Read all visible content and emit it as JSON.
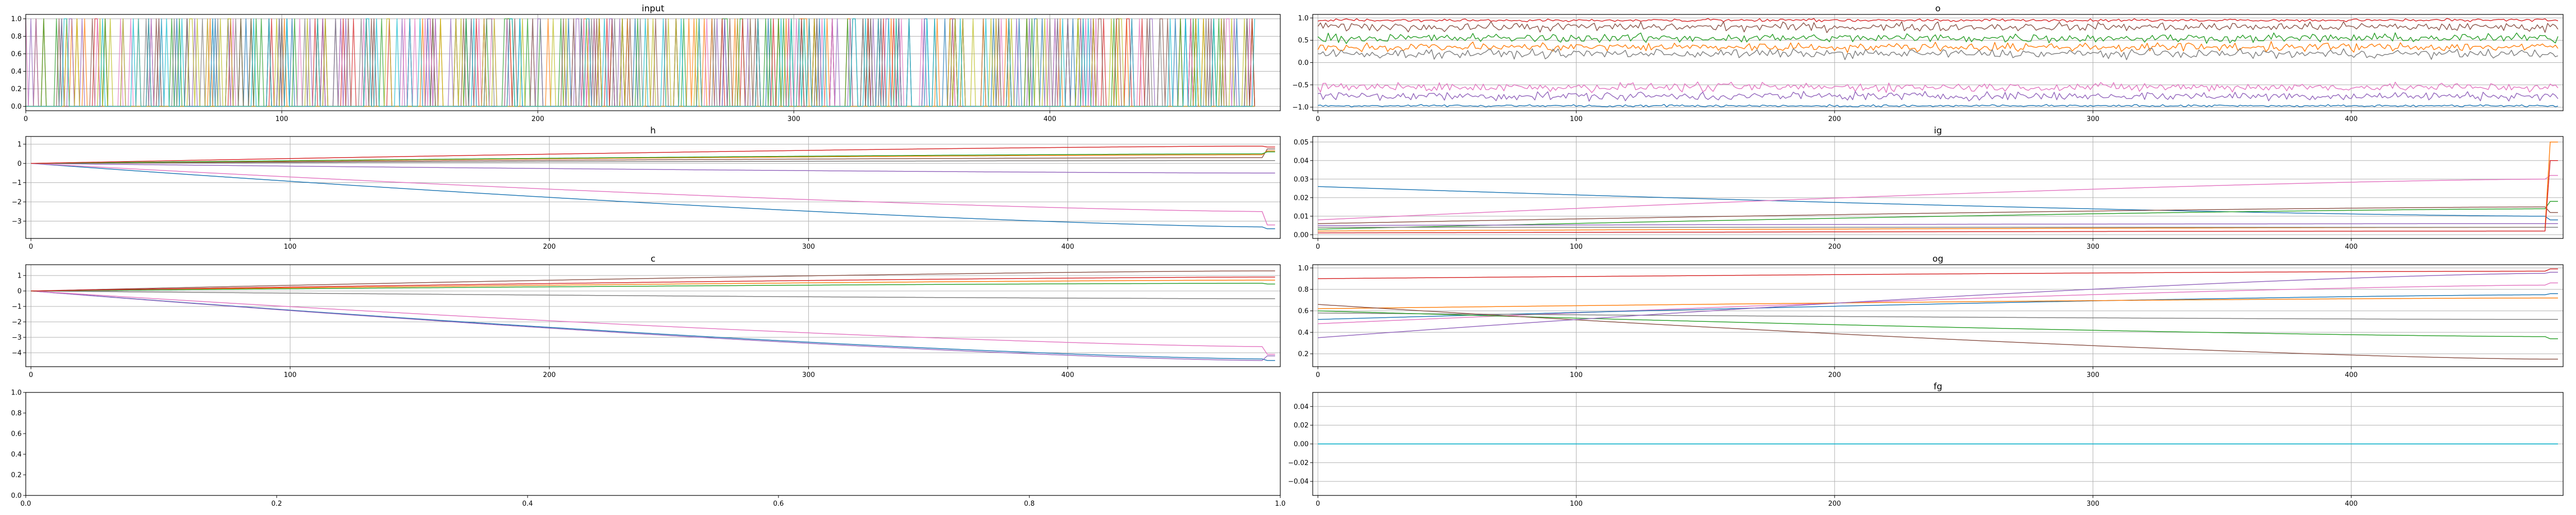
{
  "palette": [
    "#1f77b4",
    "#ff7f0e",
    "#2ca02c",
    "#d62728",
    "#9467bd",
    "#8c564b",
    "#e377c2",
    "#7f7f7f",
    "#bcbd22",
    "#17becf"
  ],
  "chart_data": [
    {
      "id": "input",
      "type": "line",
      "title": "input",
      "xlim": [
        0,
        490
      ],
      "ylim": [
        -0.05,
        1.05
      ],
      "xticks": [
        0,
        100,
        200,
        300,
        400
      ],
      "yticks": [
        0.0,
        0.2,
        0.4,
        0.6,
        0.8,
        1.0
      ],
      "ytick_labels": [
        "0.0",
        "0.2",
        "0.4",
        "0.6",
        "0.8",
        "1.0"
      ],
      "grid": true,
      "n_points": 481,
      "series": [
        {
          "id": "s0",
          "description": "binary one-hot input channels switching between 0 and 1 (dense overlapping colored vertical lines across x 0–480)"
        }
      ],
      "note_values": "one-hot binary signals in {0, 1}"
    },
    {
      "id": "o",
      "type": "line",
      "title": "o",
      "xlim": [
        -2,
        482
      ],
      "ylim": [
        -1.08,
        1.08
      ],
      "xticks": [
        0,
        100,
        200,
        300,
        400
      ],
      "yticks": [
        -1.0,
        -0.5,
        0.0,
        0.5,
        1.0
      ],
      "ytick_labels": [
        "−1.0",
        "−0.5",
        "0.0",
        "0.5",
        "1.0"
      ],
      "grid": true,
      "n_points": 481,
      "series": [
        {
          "color": "#d62728",
          "approx_level": 0.95
        },
        {
          "color": "#8c564b",
          "approx_level": 0.8
        },
        {
          "color": "#2ca02c",
          "approx_level": 0.55
        },
        {
          "color": "#ff7f0e",
          "approx_level": 0.35
        },
        {
          "color": "#7f7f7f",
          "approx_level": 0.2
        },
        {
          "color": "#e377c2",
          "approx_level": -0.55
        },
        {
          "color": "#9467bd",
          "approx_level": -0.75
        },
        {
          "color": "#1f77b4",
          "approx_level": -0.97
        }
      ]
    },
    {
      "id": "h",
      "type": "line",
      "title": "h",
      "xlim": [
        -2,
        482
      ],
      "ylim": [
        -3.9,
        1.4
      ],
      "xticks": [
        0,
        100,
        200,
        300,
        400
      ],
      "yticks": [
        -3,
        -2,
        -1,
        0,
        1
      ],
      "ytick_labels": [
        "−3",
        "−2",
        "−1",
        "0",
        "1"
      ],
      "grid": true,
      "series": [
        {
          "color": "#1f77b4",
          "start": 0,
          "end": -3.3,
          "final": -3.4
        },
        {
          "color": "#e377c2",
          "start": 0,
          "end": -2.5,
          "final": -3.2
        },
        {
          "color": "#9467bd",
          "start": 0,
          "end": -0.5,
          "final": -0.5
        },
        {
          "color": "#7f7f7f",
          "start": 0,
          "end": 0.15,
          "final": 0.15
        },
        {
          "color": "#8c564b",
          "start": 0,
          "end": 0.3,
          "final": 0.75
        },
        {
          "color": "#ff7f0e",
          "start": 0,
          "end": 0.45,
          "final": 0.65
        },
        {
          "color": "#2ca02c",
          "start": 0,
          "end": 0.5,
          "final": 0.6
        },
        {
          "color": "#d62728",
          "start": 0,
          "end": 0.9,
          "final": 0.85
        }
      ]
    },
    {
      "id": "ig",
      "type": "line",
      "title": "ig",
      "xlim": [
        -2,
        482
      ],
      "ylim": [
        -0.002,
        0.053
      ],
      "xticks": [
        0,
        100,
        200,
        300,
        400
      ],
      "yticks": [
        0.0,
        0.01,
        0.02,
        0.03,
        0.04,
        0.05
      ],
      "ytick_labels": [
        "0.00",
        "0.01",
        "0.02",
        "0.03",
        "0.04",
        "0.05"
      ],
      "grid": true,
      "series": [
        {
          "color": "#1f77b4",
          "start": 0.026,
          "end": 0.01,
          "final": 0.008
        },
        {
          "color": "#e377c2",
          "start": 0.008,
          "end": 0.03,
          "final": 0.032
        },
        {
          "color": "#2ca02c",
          "start": 0.003,
          "end": 0.014,
          "final": 0.018
        },
        {
          "color": "#8c564b",
          "start": 0.006,
          "end": 0.015,
          "final": 0.012
        },
        {
          "color": "#ff7f0e",
          "start": 0.002,
          "end": 0.004,
          "final": 0.05
        },
        {
          "color": "#9467bd",
          "start": 0.005,
          "end": 0.006,
          "final": 0.006
        },
        {
          "color": "#7f7f7f",
          "start": 0.004,
          "end": 0.004,
          "final": 0.004
        },
        {
          "color": "#d62728",
          "start": 0.001,
          "end": 0.002,
          "final": 0.04
        }
      ]
    },
    {
      "id": "c",
      "type": "line",
      "title": "c",
      "xlim": [
        -2,
        482
      ],
      "ylim": [
        -4.9,
        1.7
      ],
      "xticks": [
        0,
        100,
        200,
        300,
        400
      ],
      "yticks": [
        -4,
        -3,
        -2,
        -1,
        0,
        1
      ],
      "ytick_labels": [
        "−4",
        "−3",
        "−2",
        "−1",
        "0",
        "1"
      ],
      "grid": true,
      "series": [
        {
          "color": "#1f77b4",
          "start": 0,
          "end": -4.4,
          "final": -4.5
        },
        {
          "color": "#9467bd",
          "start": 0,
          "end": -4.5,
          "final": -4.2
        },
        {
          "color": "#e377c2",
          "start": 0,
          "end": -3.6,
          "final": -4.1
        },
        {
          "color": "#7f7f7f",
          "start": 0,
          "end": -0.5,
          "final": -0.5
        },
        {
          "color": "#8c564b",
          "start": 0,
          "end": 1.3,
          "final": 1.3
        },
        {
          "color": "#ff7f0e",
          "start": 0,
          "end": 0.7,
          "final": 0.7
        },
        {
          "color": "#2ca02c",
          "start": 0,
          "end": 0.5,
          "final": 0.45
        },
        {
          "color": "#d62728",
          "start": 0,
          "end": 0.9,
          "final": 0.9
        }
      ]
    },
    {
      "id": "og",
      "type": "line",
      "title": "og",
      "xlim": [
        -2,
        482
      ],
      "ylim": [
        0.08,
        1.03
      ],
      "xticks": [
        0,
        100,
        200,
        300,
        400
      ],
      "yticks": [
        0.2,
        0.4,
        0.6,
        0.8,
        1.0
      ],
      "ytick_labels": [
        "0.2",
        "0.4",
        "0.6",
        "0.8",
        "1.0"
      ],
      "grid": true,
      "series": [
        {
          "color": "#d62728",
          "start": 0.9,
          "end": 0.97,
          "final": 0.99
        },
        {
          "color": "#e377c2",
          "start": 0.48,
          "end": 0.84,
          "final": 0.86
        },
        {
          "color": "#1f77b4",
          "start": 0.52,
          "end": 0.75,
          "final": 0.76
        },
        {
          "color": "#ff7f0e",
          "start": 0.62,
          "end": 0.72,
          "final": 0.72
        },
        {
          "color": "#7f7f7f",
          "start": 0.58,
          "end": 0.52,
          "final": 0.52
        },
        {
          "color": "#2ca02c",
          "start": 0.6,
          "end": 0.36,
          "final": 0.34
        },
        {
          "color": "#8c564b",
          "start": 0.66,
          "end": 0.15,
          "final": 0.15
        },
        {
          "color": "#9467bd",
          "start": 0.35,
          "end": 0.95,
          "final": 0.96
        }
      ]
    },
    {
      "id": "empty",
      "type": "line",
      "title": "",
      "xlim": [
        0.0,
        1.0
      ],
      "ylim": [
        0.0,
        1.0
      ],
      "xticks": [
        0.0,
        0.2,
        0.4,
        0.6,
        0.8,
        1.0
      ],
      "xtick_labels": [
        "0.0",
        "0.2",
        "0.4",
        "0.6",
        "0.8",
        "1.0"
      ],
      "yticks": [
        0.0,
        0.2,
        0.4,
        0.6,
        0.8,
        1.0
      ],
      "ytick_labels": [
        "0.0",
        "0.2",
        "0.4",
        "0.6",
        "0.8",
        "1.0"
      ],
      "grid": false,
      "series": []
    },
    {
      "id": "fg",
      "type": "line",
      "title": "fg",
      "xlim": [
        -2,
        482
      ],
      "ylim": [
        -0.055,
        0.055
      ],
      "xticks": [
        0,
        100,
        200,
        300,
        400
      ],
      "yticks": [
        -0.04,
        -0.02,
        0.0,
        0.02,
        0.04
      ],
      "ytick_labels": [
        "−0.04",
        "−0.02",
        "0.00",
        "0.02",
        "0.04"
      ],
      "grid": true,
      "series": [
        {
          "color": "#1f77b4",
          "start": 0,
          "end": 0,
          "final": 0
        },
        {
          "color": "#17becf",
          "start": 0,
          "end": 0,
          "final": 0
        }
      ]
    }
  ]
}
